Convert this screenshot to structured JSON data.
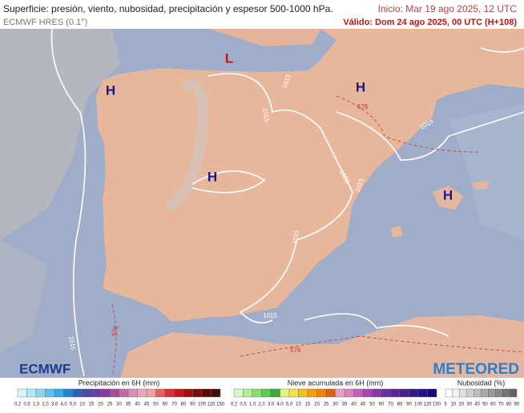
{
  "header": {
    "title": "Superficie: presión, viento, nubosidad, precipitación y espesor 500-1000 hPa.",
    "model": "ECMWF HRES (0.1°)",
    "init": "Inicio: Mar 19 ago 2025, 12 UTC",
    "valid": "Válido: Dom 24 ago 2025, 00 UTC (H+108)"
  },
  "map": {
    "highs": [
      "H",
      "H",
      "H",
      "H"
    ],
    "lows": [
      "L"
    ],
    "isobar_labels": [
      "1015",
      "1015",
      "1015",
      "1015",
      "1015",
      "1015",
      "1015",
      "1015"
    ],
    "thickness_labels": [
      "576",
      "576",
      "576"
    ]
  },
  "logos": {
    "left": "ECMWF",
    "right": "METEORED"
  },
  "legends": [
    {
      "title": "Precipitación en 6H (mm)",
      "labels": [
        "0,2",
        "0,5",
        "1,0",
        "2,0",
        "3,0",
        "4,0",
        "5,0",
        "10",
        "15",
        "20",
        "25",
        "30",
        "35",
        "40",
        "45",
        "50",
        "60",
        "70",
        "80",
        "90",
        "100",
        "120",
        "150"
      ]
    },
    {
      "title": "Nieve acumulada en 6H (mm)",
      "labels": [
        "0,2",
        "0,5",
        "1,0",
        "2,0",
        "3,0",
        "4,0",
        "5,0",
        "10",
        "15",
        "20",
        "25",
        "30",
        "35",
        "40",
        "45",
        "50",
        "60",
        "70",
        "80",
        "90",
        "100",
        "120",
        "150"
      ]
    },
    {
      "title": "Nubosidad (%)",
      "labels": [
        "5",
        "10",
        "20",
        "30",
        "40",
        "50",
        "60",
        "70",
        "80",
        "90"
      ]
    }
  ]
}
